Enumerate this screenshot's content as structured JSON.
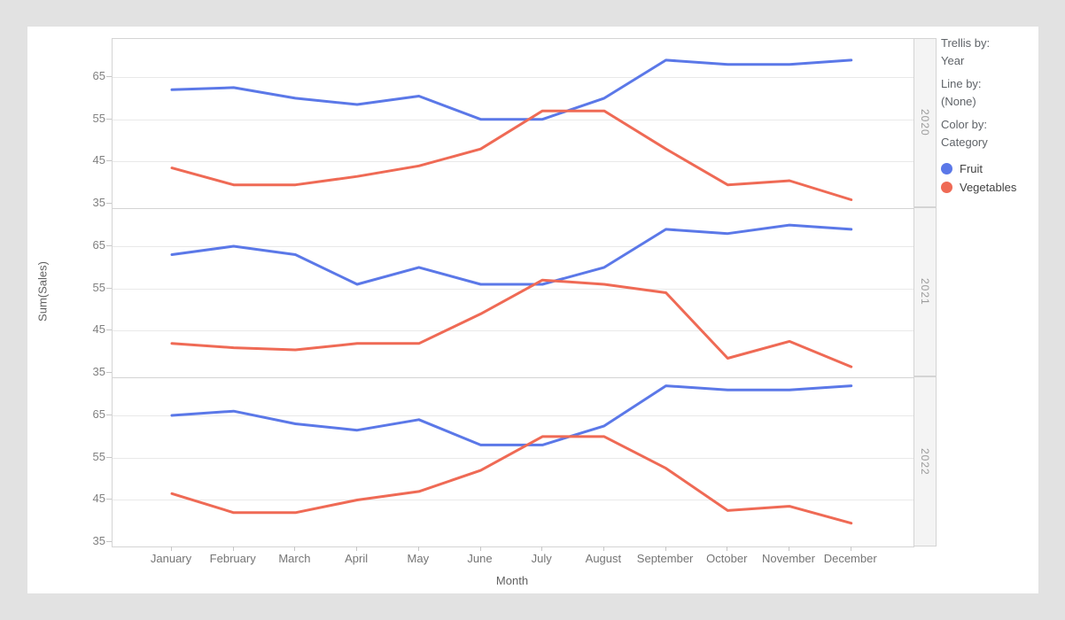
{
  "sidebar": {
    "trellis_by_label": "Trellis by:",
    "trellis_by_value": "Year",
    "line_by_label": "Line by:",
    "line_by_value": "(None)",
    "color_by_label": "Color by:",
    "color_by_value": "Category",
    "legend": [
      {
        "label": "Fruit",
        "color": "#5b78e8"
      },
      {
        "label": "Vegetables",
        "color": "#ef6a55"
      }
    ]
  },
  "chart_data": {
    "type": "line",
    "trellis_by": "Year",
    "xlabel": "Month",
    "ylabel": "Sum(Sales)",
    "x": [
      "January",
      "February",
      "March",
      "April",
      "May",
      "June",
      "July",
      "August",
      "September",
      "October",
      "November",
      "December"
    ],
    "y_ticks": [
      65,
      55,
      45,
      35
    ],
    "ylim": [
      34,
      74
    ],
    "grid": "horizontal",
    "legend_position": "right",
    "series_colors": {
      "Fruit": "#5b78e8",
      "Vegetables": "#ef6a55"
    },
    "panels": [
      {
        "year": "2020",
        "series": [
          {
            "name": "Fruit",
            "values": [
              62,
              62.5,
              60,
              58.5,
              60.5,
              55,
              55,
              60,
              69,
              68,
              68,
              69
            ]
          },
          {
            "name": "Vegetables",
            "values": [
              43.5,
              39.5,
              39.5,
              41.5,
              44,
              48,
              57,
              57,
              48,
              39.5,
              40.5,
              36
            ]
          }
        ]
      },
      {
        "year": "2021",
        "series": [
          {
            "name": "Fruit",
            "values": [
              63,
              65,
              63,
              56,
              60,
              56,
              56,
              60,
              69,
              68,
              70,
              69
            ]
          },
          {
            "name": "Vegetables",
            "values": [
              42,
              41,
              40.5,
              42,
              42,
              49,
              57,
              56,
              54,
              38.5,
              42.5,
              36.5
            ]
          }
        ]
      },
      {
        "year": "2022",
        "series": [
          {
            "name": "Fruit",
            "values": [
              65,
              66,
              63,
              61.5,
              64,
              58,
              58,
              62.5,
              72,
              71,
              71,
              72
            ]
          },
          {
            "name": "Vegetables",
            "values": [
              46.5,
              42,
              42,
              45,
              47,
              52,
              60,
              60,
              52.5,
              42.5,
              43.5,
              39.5
            ]
          }
        ]
      }
    ],
    "style": {
      "grid_color": "#e9e9e9",
      "border_color": "#d4d4d4",
      "line_width": 3
    }
  }
}
